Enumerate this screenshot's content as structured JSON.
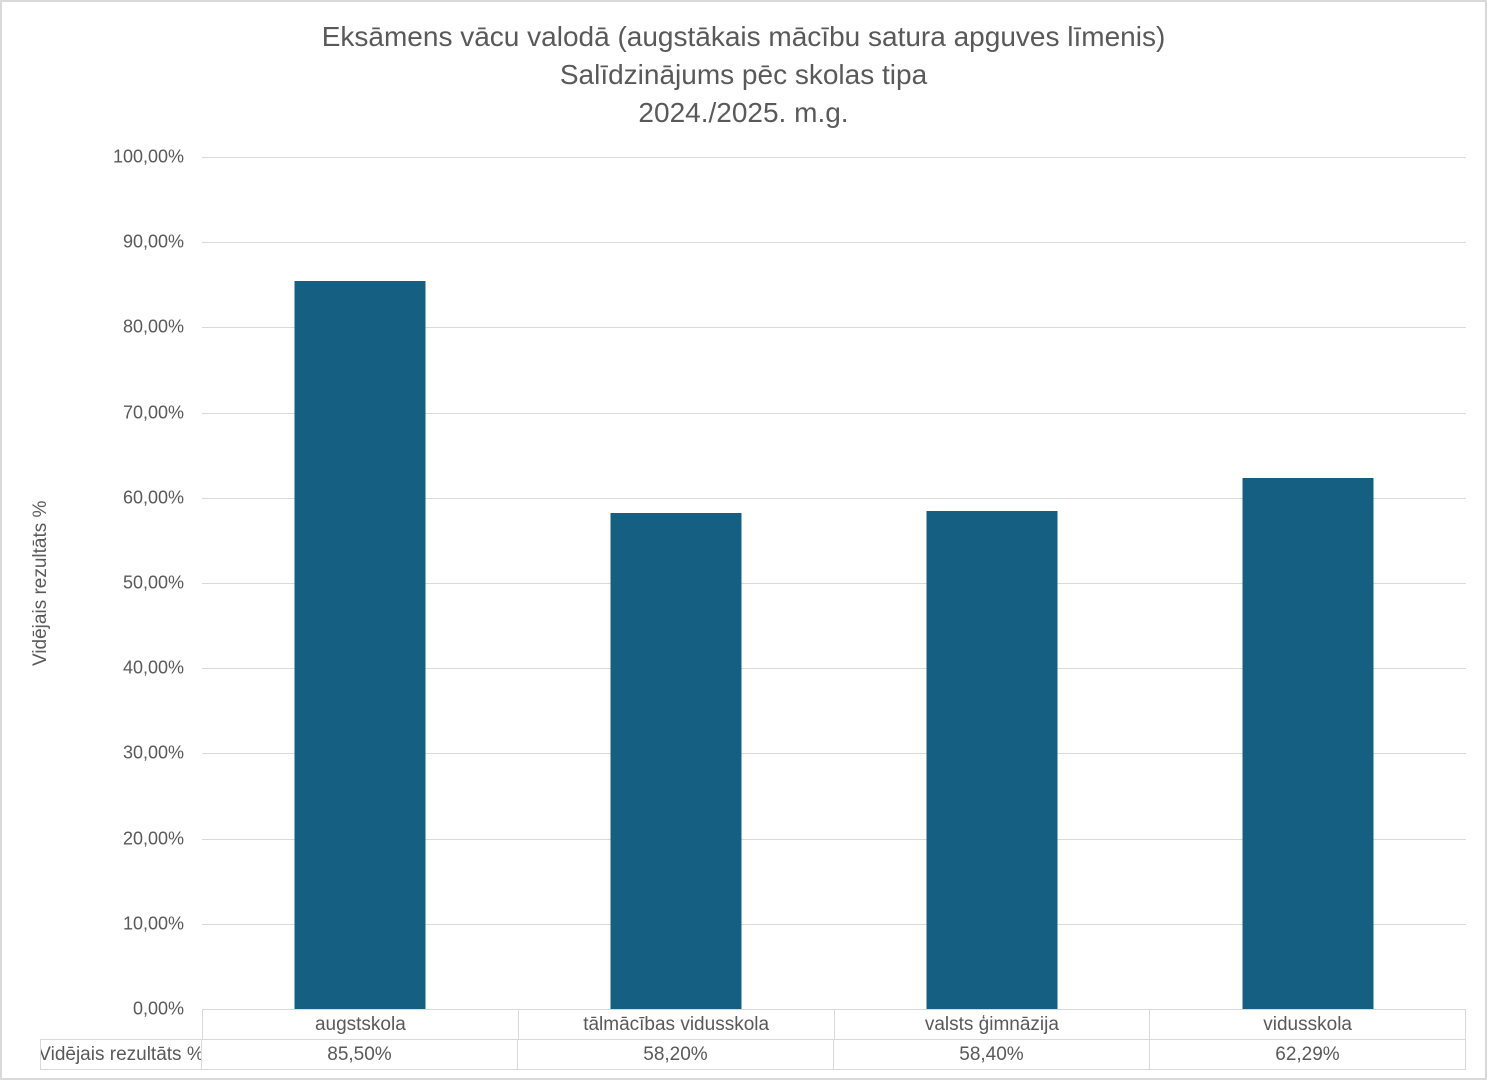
{
  "title": {
    "lines": [
      "Eksāmens vācu valodā (augstākais mācību satura apguves līmenis)",
      "Salīdzinājums pēc skolas tipa",
      "2024./2025. m.g."
    ],
    "color": "#595959"
  },
  "y_axis": {
    "title": "Vidējais rezultāts %",
    "tick_labels": [
      "100,00%",
      "90,00%",
      "80,00%",
      "70,00%",
      "60,00%",
      "50,00%",
      "40,00%",
      "30,00%",
      "20,00%",
      "10,00%",
      "0,00%"
    ],
    "min": 0,
    "max": 100,
    "step": 10
  },
  "table": {
    "row_header": "Vidējais rezultāts %"
  },
  "chart_data": {
    "type": "bar",
    "title": "Eksāmens vācu valodā (augstākais mācību satura apguves līmenis) Salīdzinājums pēc skolas tipa 2024./2025. m.g.",
    "categories": [
      "augstskola",
      "tālmācības vidusskola",
      "valsts ģimnāzija",
      "vidusskola"
    ],
    "values": [
      85.5,
      58.2,
      58.4,
      62.29
    ],
    "value_labels": [
      "85,50%",
      "58,20%",
      "58,40%",
      "62,29%"
    ],
    "series_name": "Vidējais rezultāts %",
    "xlabel": "",
    "ylabel": "Vidējais rezultāts %",
    "ylim": [
      0,
      100
    ],
    "grid": true,
    "legend_position": "none",
    "bar_color": "#156082",
    "gridline_color": "#d9d9d9",
    "text_color": "#595959",
    "border_color": "#d9d9d9"
  }
}
